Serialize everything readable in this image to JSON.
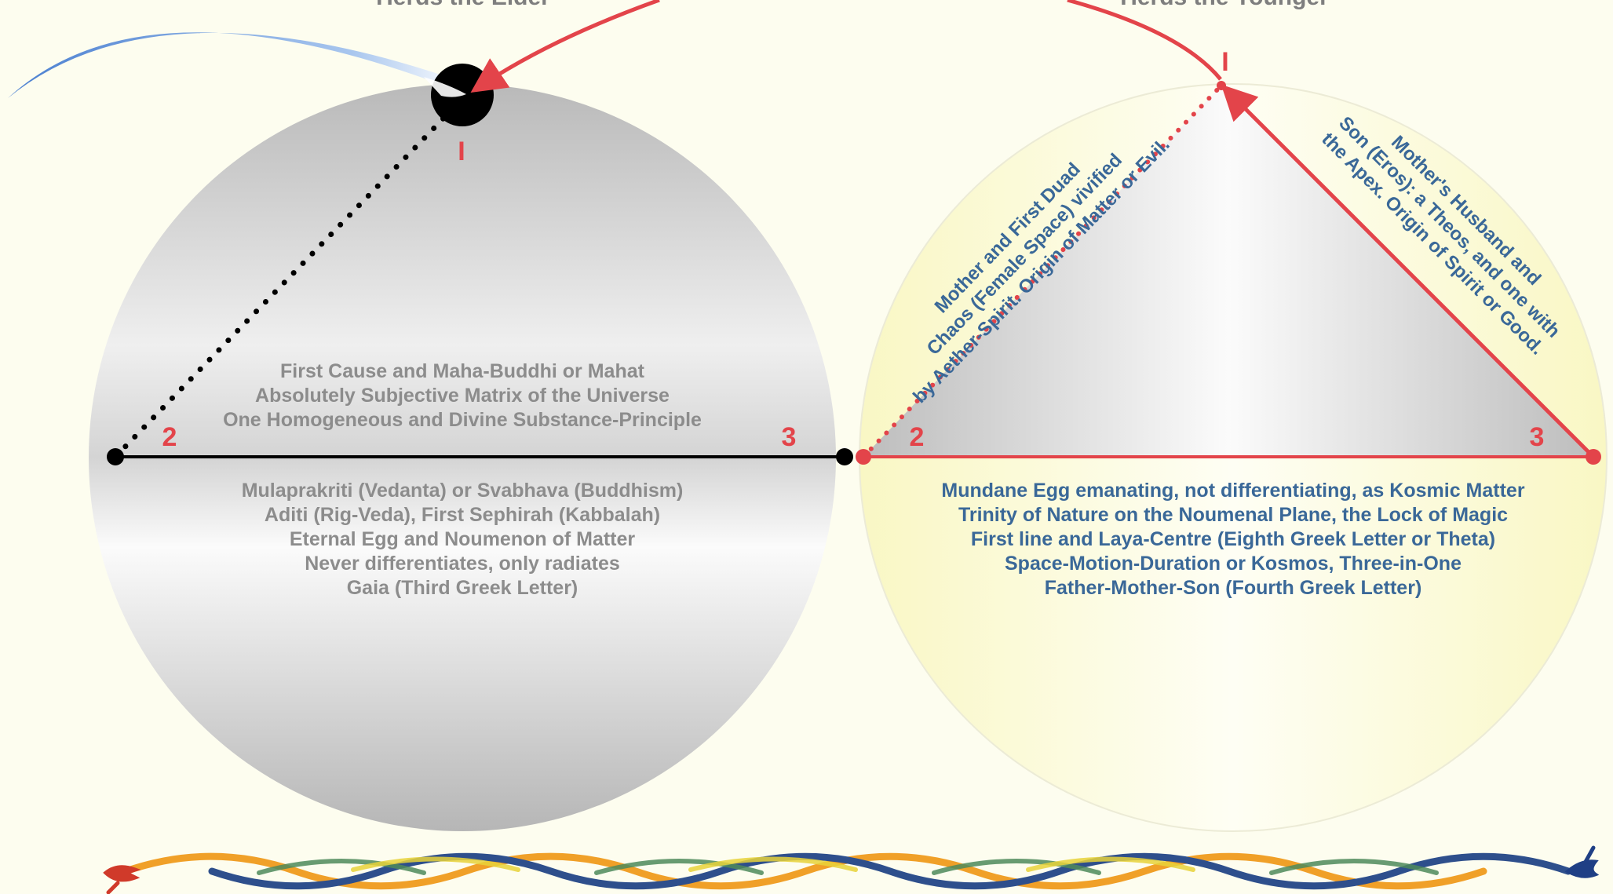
{
  "titles": {
    "left": "Herds the Elder",
    "right": "Herds the Younger"
  },
  "left_circle": {
    "markers": {
      "one": "I",
      "two": "2",
      "three": "3"
    },
    "upper_lines": [
      "First Cause and Maha-Buddhi or Mahat",
      "Absolutely Subjective Matrix of the Universe",
      "One Homogeneous and Divine Substance-Principle"
    ],
    "lower_lines": [
      "Mulaprakriti (Vedanta) or Svabhava (Buddhism)",
      "Aditi (Rig-Veda), First Sephirah (Kabbalah)",
      "Eternal Egg and Noumenon of Matter",
      "Never differentiates, only radiates",
      "Gaia (Third Greek Letter)"
    ]
  },
  "right_circle": {
    "markers": {
      "one": "I",
      "two": "2",
      "three": "3"
    },
    "left_side_lines": [
      "Mother and First Duad",
      "Chaos (Female Space) vivified",
      "by Aether-Spirit. Origin of Matter or Evil."
    ],
    "right_side_lines": [
      "Mother's Husband and",
      "Son (Eros): a Theos, and one with",
      "the Apex. Origin of Spirit or Good."
    ],
    "lower_lines": [
      "Mundane Egg emanating, not differentiating, as Kosmic Matter",
      "Trinity of Nature on the Noumenal Plane, the Lock of Magic",
      "First line and Laya-Centre (Eighth Greek Letter or Theta)",
      "Space-Motion-Duration or Kosmos, Three-in-One",
      "Father-Mother-Son (Fourth Greek Letter)"
    ]
  },
  "colors": {
    "background": "#fdfdef",
    "red": "#e3444a",
    "blue_text": "#3a6898",
    "gray_text": "#8c8c8c"
  }
}
